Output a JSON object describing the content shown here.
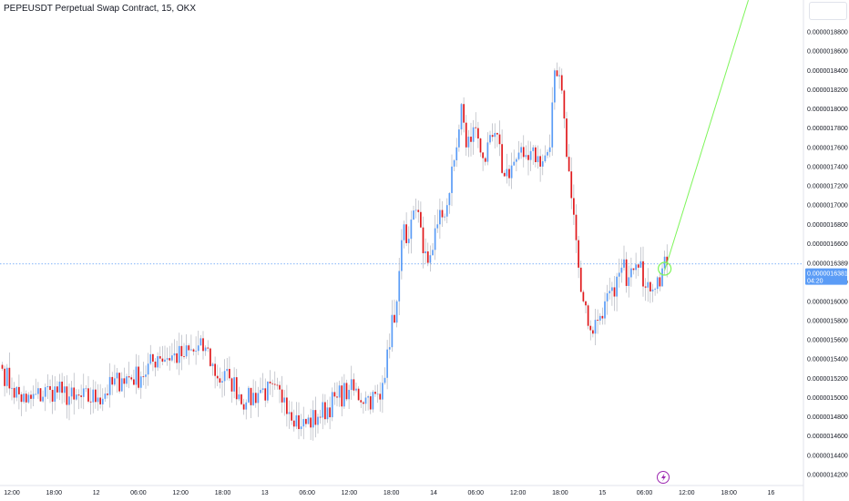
{
  "header": {
    "title": "PEPEUSDT Perpetual Swap Contract, 15, OKX"
  },
  "colors": {
    "up": "#5b9cf6",
    "down": "#e0191c",
    "wick": "#b2b5be",
    "trend": "#7ef55a",
    "reference_line": "#5b9cf6",
    "current_bg": "#5b9cf6"
  },
  "icons": {
    "lightning": "lightning-icon"
  },
  "chart_data": {
    "type": "candlestick",
    "title": "PEPEUSDT Perpetual Swap Contract, 15, OKX",
    "xlabel": "",
    "ylabel": "",
    "ylim": [
      1.41e-06,
      1.92e-06
    ],
    "y_ticks": [
      "0.0000014200",
      "0.0000014400",
      "0.0000014600",
      "0.0000014800",
      "0.0000015000",
      "0.0000015200",
      "0.0000015400",
      "0.0000015600",
      "0.0000015800",
      "0.0000016000",
      "0.0000016200",
      "0.0000016400",
      "0.0000016600",
      "0.0000016800",
      "0.0000017000",
      "0.0000017200",
      "0.0000017400",
      "0.0000017600",
      "0.0000017800",
      "0.0000018000",
      "0.0000018200",
      "0.0000018400",
      "0.0000018600",
      "0.0000018800"
    ],
    "x_ticks": [
      "12:00",
      "18:00",
      "12",
      "06:00",
      "12:00",
      "18:00",
      "13",
      "06:00",
      "12:00",
      "18:00",
      "14",
      "06:00",
      "12:00",
      "18:00",
      "15",
      "06:00",
      "12:00",
      "18:00",
      "16"
    ],
    "reference_price": 1.6389e-06,
    "reference_price_label": "0.0000016389",
    "current_price": 1.6381e-06,
    "current_price_label": "0.0000016381",
    "countdown": "04:20",
    "grid": false,
    "trend_line": [
      {
        "index": 277,
        "value": 1.632e-06
      },
      {
        "index": 312,
        "value": 1.913e-06
      }
    ],
    "anchors": [
      {
        "index": 0,
        "value": 1.53e-06
      },
      {
        "index": 4,
        "value": 1.51e-06
      },
      {
        "index": 10,
        "value": 1.495e-06
      },
      {
        "index": 20,
        "value": 1.508e-06
      },
      {
        "index": 25,
        "value": 1.505e-06
      },
      {
        "index": 30,
        "value": 1.498e-06
      },
      {
        "index": 40,
        "value": 1.5e-06
      },
      {
        "index": 50,
        "value": 1.52e-06
      },
      {
        "index": 58,
        "value": 1.522e-06
      },
      {
        "index": 65,
        "value": 1.543e-06
      },
      {
        "index": 75,
        "value": 1.543e-06
      },
      {
        "index": 85,
        "value": 1.552e-06
      },
      {
        "index": 90,
        "value": 1.52e-06
      },
      {
        "index": 95,
        "value": 1.52e-06
      },
      {
        "index": 102,
        "value": 1.495e-06
      },
      {
        "index": 108,
        "value": 1.508e-06
      },
      {
        "index": 118,
        "value": 1.5e-06
      },
      {
        "index": 125,
        "value": 1.47e-06
      },
      {
        "index": 132,
        "value": 1.48e-06
      },
      {
        "index": 140,
        "value": 1.5e-06
      },
      {
        "index": 145,
        "value": 1.508e-06
      },
      {
        "index": 152,
        "value": 1.5e-06
      },
      {
        "index": 158,
        "value": 1.498e-06
      },
      {
        "index": 161,
        "value": 1.55e-06
      },
      {
        "index": 165,
        "value": 1.6e-06
      },
      {
        "index": 168,
        "value": 1.68e-06
      },
      {
        "index": 170,
        "value": 1.665e-06
      },
      {
        "index": 173,
        "value": 1.695e-06
      },
      {
        "index": 176,
        "value": 1.65e-06
      },
      {
        "index": 178,
        "value": 1.64e-06
      },
      {
        "index": 182,
        "value": 1.68e-06
      },
      {
        "index": 186,
        "value": 1.7e-06
      },
      {
        "index": 190,
        "value": 1.76e-06
      },
      {
        "index": 192,
        "value": 1.805e-06
      },
      {
        "index": 194,
        "value": 1.76e-06
      },
      {
        "index": 198,
        "value": 1.78e-06
      },
      {
        "index": 202,
        "value": 1.745e-06
      },
      {
        "index": 206,
        "value": 1.775e-06
      },
      {
        "index": 210,
        "value": 1.73e-06
      },
      {
        "index": 214,
        "value": 1.745e-06
      },
      {
        "index": 218,
        "value": 1.75e-06
      },
      {
        "index": 222,
        "value": 1.76e-06
      },
      {
        "index": 225,
        "value": 1.74e-06
      },
      {
        "index": 229,
        "value": 1.76e-06
      },
      {
        "index": 231,
        "value": 1.84e-06
      },
      {
        "index": 233,
        "value": 1.835e-06
      },
      {
        "index": 235,
        "value": 1.79e-06
      },
      {
        "index": 237,
        "value": 1.735e-06
      },
      {
        "index": 239,
        "value": 1.69e-06
      },
      {
        "index": 241,
        "value": 1.635e-06
      },
      {
        "index": 243,
        "value": 1.6e-06
      },
      {
        "index": 246,
        "value": 1.57e-06
      },
      {
        "index": 249,
        "value": 1.58e-06
      },
      {
        "index": 252,
        "value": 1.6e-06
      },
      {
        "index": 256,
        "value": 1.605e-06
      },
      {
        "index": 259,
        "value": 1.635e-06
      },
      {
        "index": 262,
        "value": 1.625e-06
      },
      {
        "index": 266,
        "value": 1.635e-06
      },
      {
        "index": 270,
        "value": 1.62e-06
      },
      {
        "index": 274,
        "value": 1.625e-06
      },
      {
        "index": 278,
        "value": 1.6381e-06
      }
    ]
  }
}
